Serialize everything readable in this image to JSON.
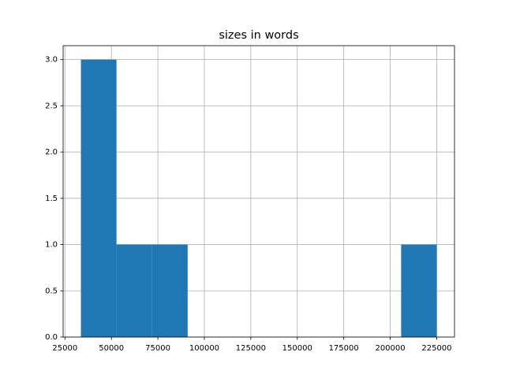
{
  "chart_data": {
    "type": "histogram",
    "title": "sizes in words",
    "bins": [
      33600,
      52740,
      71880,
      91020,
      110160,
      129300,
      148440,
      167580,
      186720,
      205860,
      225000
    ],
    "counts": [
      3,
      1,
      1,
      0,
      0,
      0,
      0,
      0,
      0,
      1
    ],
    "color": "#1f77b4",
    "grid": true,
    "xlim": [
      24030,
      234570
    ],
    "xticks": [
      25000,
      50000,
      75000,
      100000,
      125000,
      150000,
      175000,
      200000,
      225000
    ],
    "ylim": [
      0,
      3.15
    ],
    "yticks": [
      {
        "value": 0,
        "label": "0.0"
      },
      {
        "value": 0.5,
        "label": "0.5"
      },
      {
        "value": 1,
        "label": "1.0"
      },
      {
        "value": 1.5,
        "label": "1.5"
      },
      {
        "value": 2,
        "label": "2.0"
      },
      {
        "value": 2.5,
        "label": "2.5"
      },
      {
        "value": 3,
        "label": "3.0"
      }
    ]
  }
}
